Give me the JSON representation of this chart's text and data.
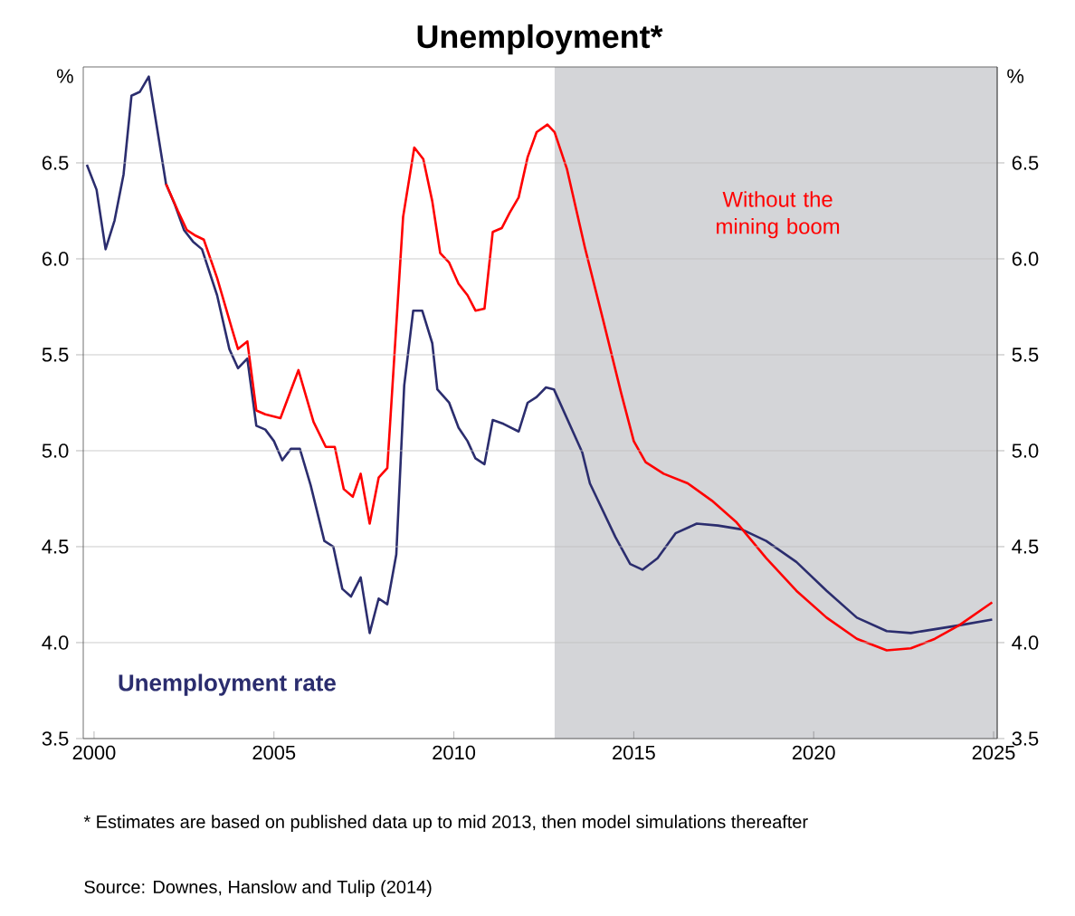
{
  "chart_data": {
    "type": "line",
    "title": "Unemployment*",
    "ylabel": "%",
    "y2label": "%",
    "xlim": [
      1999.7,
      2025.1
    ],
    "xticks": [
      2000,
      2005,
      2010,
      2015,
      2020,
      2025
    ],
    "ylim": [
      3.5,
      7.0
    ],
    "yticks": [
      3.5,
      {
        "value": 4,
        "label": "4.0"
      },
      4.5,
      {
        "value": 5,
        "label": "5.0"
      },
      5.5,
      {
        "value": 6,
        "label": "6.0"
      },
      6.5
    ],
    "y2lim": [
      3.5,
      7.0
    ],
    "y2ticks": [
      3.5,
      {
        "value": 4,
        "label": "4.0"
      },
      4.5,
      {
        "value": 5,
        "label": "5.0"
      },
      5.5,
      {
        "value": 6,
        "label": "6.0"
      },
      6.5
    ],
    "grid": "y",
    "marker": "none",
    "line_style": "solid",
    "bands": [
      {
        "axis": "x",
        "from": 2012.8,
        "to": 2025.1,
        "color": "#d4d5d8"
      }
    ],
    "series": [
      {
        "name": "Unemployment rate",
        "color": "#2b2d6e",
        "x": [
          1999.8,
          2000.07,
          2000.32,
          2000.57,
          2000.82,
          2001.04,
          2001.27,
          2001.52,
          2002.0,
          2002.25,
          2002.5,
          2002.75,
          2003.0,
          2003.42,
          2003.76,
          2004.0,
          2004.26,
          2004.51,
          2004.76,
          2005.0,
          2005.23,
          2005.47,
          2005.72,
          2006.02,
          2006.4,
          2006.65,
          2006.9,
          2007.14,
          2007.41,
          2007.66,
          2007.91,
          2008.15,
          2008.4,
          2008.62,
          2008.87,
          2009.12,
          2009.4,
          2009.54,
          2009.87,
          2010.13,
          2010.38,
          2010.6,
          2010.85,
          2011.08,
          2011.38,
          2011.8,
          2012.05,
          2012.3,
          2012.56,
          2012.78,
          2013.57,
          2013.78,
          2014.49,
          2014.9,
          2015.24,
          2015.66,
          2016.16,
          2016.75,
          2017.34,
          2018.0,
          2018.68,
          2019.52,
          2020.36,
          2021.2,
          2022.03,
          2022.7,
          2023.37,
          2024.04,
          2024.96
        ],
        "values": [
          6.49,
          6.36,
          6.05,
          6.2,
          6.44,
          6.85,
          6.87,
          6.95,
          6.39,
          6.28,
          6.15,
          6.09,
          6.05,
          5.81,
          5.53,
          5.43,
          5.48,
          5.13,
          5.11,
          5.05,
          4.95,
          5.01,
          5.01,
          4.82,
          4.53,
          4.5,
          4.28,
          4.24,
          4.34,
          4.05,
          4.23,
          4.2,
          4.46,
          5.34,
          5.73,
          5.73,
          5.56,
          5.32,
          5.25,
          5.12,
          5.05,
          4.96,
          4.93,
          5.16,
          5.14,
          5.1,
          5.25,
          5.28,
          5.33,
          5.32,
          4.99,
          4.83,
          4.55,
          4.41,
          4.38,
          4.44,
          4.57,
          4.62,
          4.61,
          4.59,
          4.53,
          4.42,
          4.27,
          4.13,
          4.06,
          4.05,
          4.07,
          4.09,
          4.12
        ]
      },
      {
        "name": "Without the mining boom",
        "color": "#ff0000",
        "x": [
          2002.0,
          2002.33,
          2002.58,
          2002.83,
          2003.05,
          2003.42,
          2003.84,
          2004.0,
          2004.26,
          2004.51,
          2004.76,
          2005.18,
          2005.68,
          2006.1,
          2006.44,
          2006.69,
          2006.94,
          2007.19,
          2007.41,
          2007.66,
          2007.91,
          2008.15,
          2008.59,
          2008.9,
          2009.15,
          2009.4,
          2009.62,
          2009.87,
          2010.13,
          2010.38,
          2010.6,
          2010.85,
          2011.08,
          2011.33,
          2011.55,
          2011.8,
          2012.05,
          2012.3,
          2012.6,
          2012.8,
          2013.14,
          2013.64,
          2014.15,
          2014.65,
          2015.0,
          2015.33,
          2015.83,
          2016.5,
          2017.17,
          2017.84,
          2018.68,
          2019.52,
          2020.36,
          2021.2,
          2022.03,
          2022.7,
          2023.37,
          2024.04,
          2024.96
        ],
        "values": [
          6.39,
          6.25,
          6.15,
          6.12,
          6.1,
          5.9,
          5.63,
          5.53,
          5.57,
          5.21,
          5.19,
          5.17,
          5.42,
          5.15,
          5.02,
          5.02,
          4.8,
          4.76,
          4.88,
          4.62,
          4.86,
          4.91,
          6.22,
          6.58,
          6.52,
          6.3,
          6.03,
          5.98,
          5.87,
          5.81,
          5.73,
          5.74,
          6.14,
          6.16,
          6.24,
          6.32,
          6.53,
          6.66,
          6.7,
          6.66,
          6.47,
          6.06,
          5.68,
          5.3,
          5.05,
          4.94,
          4.88,
          4.83,
          4.74,
          4.63,
          4.44,
          4.27,
          4.13,
          4.02,
          3.96,
          3.97,
          4.02,
          4.09,
          4.21
        ]
      }
    ],
    "annotations": [
      "*\tEstimates are based on published data up to mid 2013, then model simulations thereafter",
      "Source: Downes, Hanslow and Tulip (2014)"
    ]
  }
}
